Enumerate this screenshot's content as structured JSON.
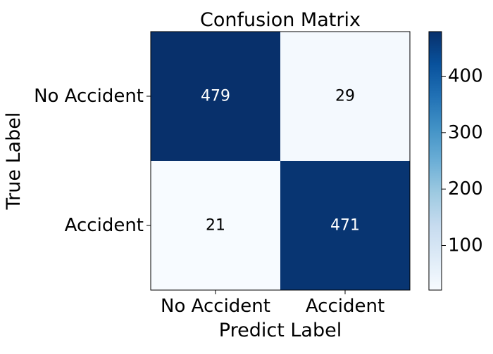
{
  "chart_data": {
    "type": "heatmap",
    "title": "Confusion Matrix",
    "xlabel": "Predict Label",
    "ylabel": "True Label",
    "x_categories": [
      "No Accident",
      "Accident"
    ],
    "y_categories": [
      "No Accident",
      "Accident"
    ],
    "values": [
      [
        479,
        29
      ],
      [
        21,
        471
      ]
    ],
    "colorscale": "Blues",
    "colors": {
      "low": "#f7fbff",
      "high": "#08306b",
      "text_on_dark": "#ffffff",
      "text_on_light": "#000000"
    },
    "colorbar": {
      "range": [
        21,
        479
      ],
      "ticks": [
        100,
        200,
        300,
        400
      ],
      "placement": "right"
    },
    "grid": false,
    "legend": "none"
  }
}
